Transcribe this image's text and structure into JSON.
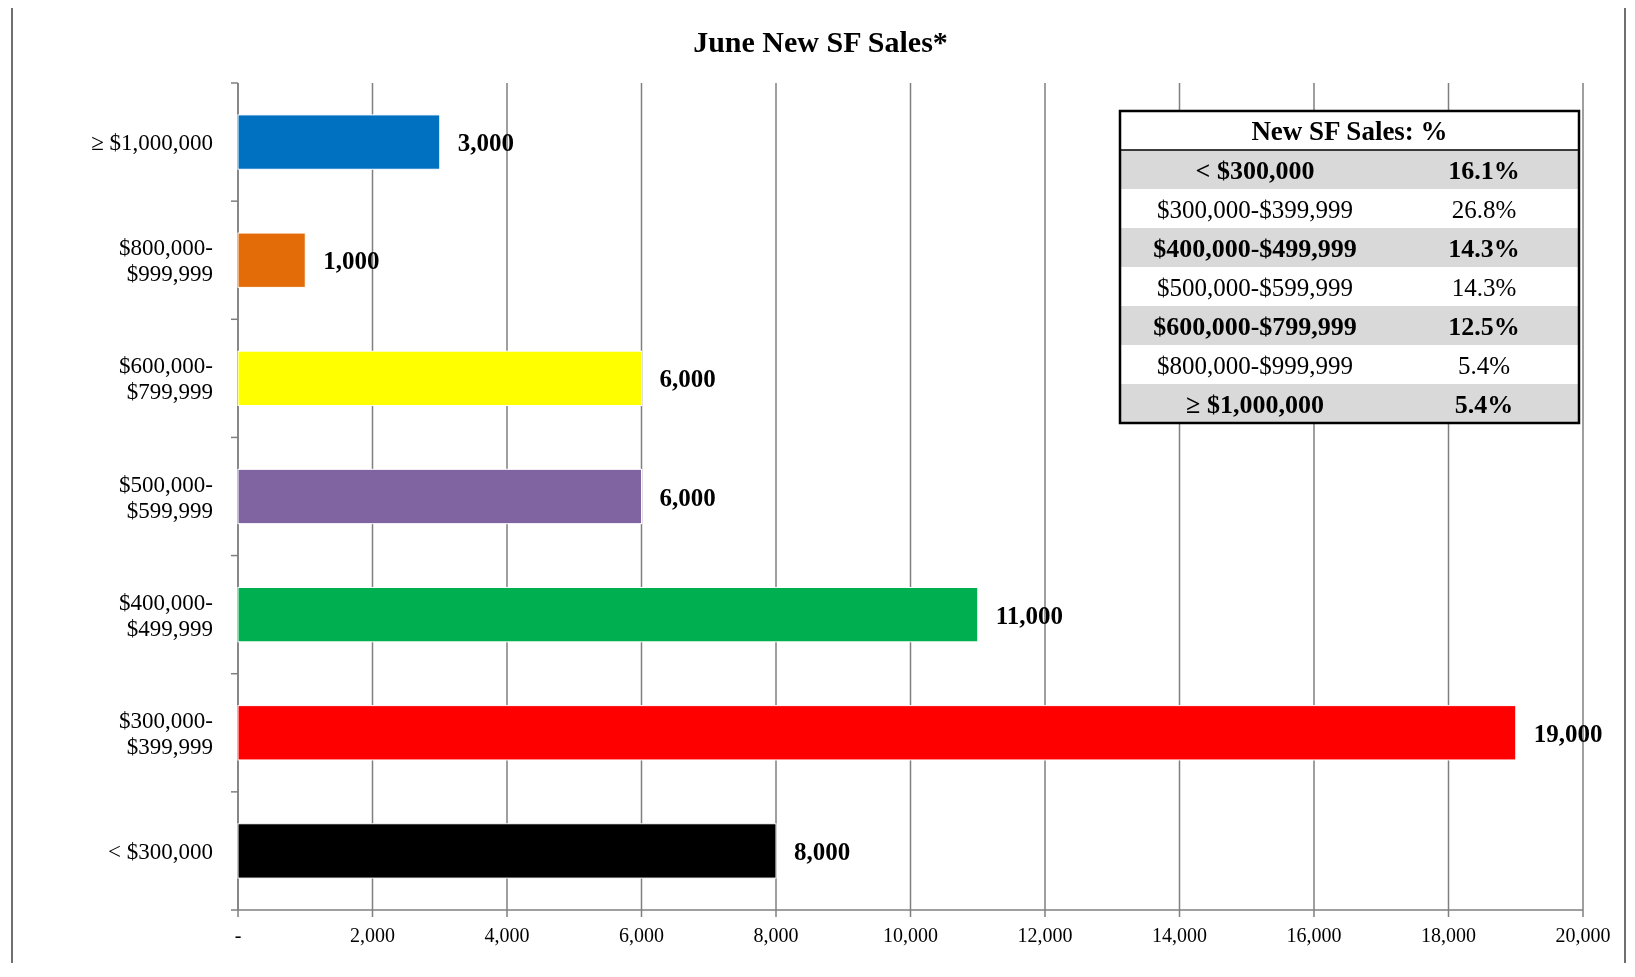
{
  "chart_data": {
    "type": "bar",
    "orientation": "horizontal",
    "title": "June New SF Sales*",
    "categories": [
      "≥ $1,000,000",
      "$800,000-$999,999",
      "$600,000-$799,999",
      "$500,000-$599,999",
      "$400,000-$499,999",
      "$300,000-$399,999",
      "< $300,000"
    ],
    "values": [
      3000,
      1000,
      6000,
      6000,
      11000,
      19000,
      8000
    ],
    "colors": [
      "#0070c0",
      "#e36c09",
      "#ffff00",
      "#8064a2",
      "#00b050",
      "#ff0000",
      "#000000"
    ],
    "value_labels": [
      "3,000",
      "1,000",
      "6,000",
      "6,000",
      "11,000",
      "19,000",
      "8,000"
    ],
    "xlim": [
      0,
      20000
    ],
    "xticks": [
      {
        "value": 0,
        "label": "-"
      },
      {
        "value": 2000,
        "label": "2,000"
      },
      {
        "value": 4000,
        "label": "4,000"
      },
      {
        "value": 6000,
        "label": "6,000"
      },
      {
        "value": 8000,
        "label": "8,000"
      },
      {
        "value": 10000,
        "label": "10,000"
      },
      {
        "value": 12000,
        "label": "12,000"
      },
      {
        "value": 14000,
        "label": "14,000"
      },
      {
        "value": 16000,
        "label": "16,000"
      },
      {
        "value": 18000,
        "label": "18,000"
      },
      {
        "value": 20000,
        "label": "20,000"
      }
    ],
    "grid": "x",
    "annotations": [
      "New SF Sales: %",
      "< $300,000",
      "16.1%",
      "$300,000-$399,999",
      "26.8%",
      "$400,000-$499,999",
      "14.3%",
      "$500,000-$599,999",
      "14.3%",
      "$600,000-$799,999",
      "12.5%",
      "$800,000-$999,999",
      "5.4%",
      "≥ $1,000,000",
      "5.4%"
    ]
  }
}
